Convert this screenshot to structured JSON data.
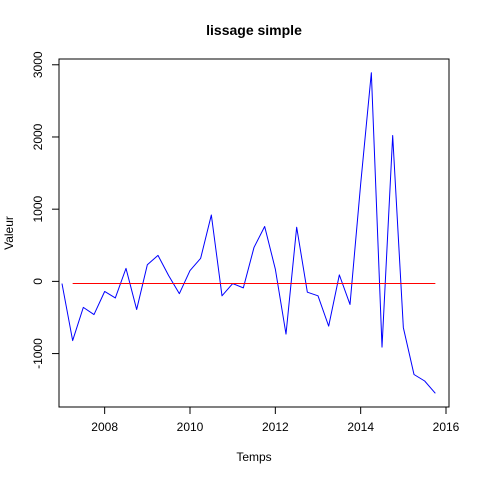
{
  "chart_data": {
    "type": "line",
    "title": "lissage simple",
    "xlabel": "Temps",
    "ylabel": "Valeur",
    "xlim": [
      2006.93,
      2016.07
    ],
    "ylim": [
      -1740,
      3080
    ],
    "x_ticks": [
      2008,
      2010,
      2012,
      2014,
      2016
    ],
    "x_tick_labels": [
      "2008",
      "2010",
      "2012",
      "2014",
      "2016"
    ],
    "y_ticks": [
      -1000,
      0,
      1000,
      2000,
      3000
    ],
    "y_tick_labels": [
      "-1000",
      "0",
      "1000",
      "2000",
      "3000"
    ],
    "grid": false,
    "series": [
      {
        "color": "#0000ff",
        "x": [
          2007.0,
          2007.25,
          2007.5,
          2007.75,
          2008.0,
          2008.25,
          2008.5,
          2008.75,
          2009.0,
          2009.25,
          2009.5,
          2009.75,
          2010.0,
          2010.25,
          2010.5,
          2010.75,
          2011.0,
          2011.25,
          2011.5,
          2011.75,
          2012.0,
          2012.25,
          2012.5,
          2012.75,
          2013.0,
          2013.25,
          2013.5,
          2013.75,
          2014.0,
          2014.25,
          2014.5,
          2014.75,
          2015.0,
          2015.25,
          2015.5,
          2015.75
        ],
        "values": [
          -30,
          -820,
          -360,
          -460,
          -140,
          -230,
          180,
          -390,
          230,
          360,
          80,
          -170,
          150,
          320,
          920,
          -200,
          -30,
          -90,
          470,
          760,
          170,
          -730,
          750,
          -150,
          -200,
          -620,
          90,
          -320,
          1350,
          2890,
          -910,
          2020,
          -640,
          -1290,
          -1380,
          -1550
        ]
      },
      {
        "color": "#ff0000",
        "x": [
          2007.25,
          2015.75
        ],
        "values": [
          -30,
          -30
        ]
      }
    ]
  }
}
